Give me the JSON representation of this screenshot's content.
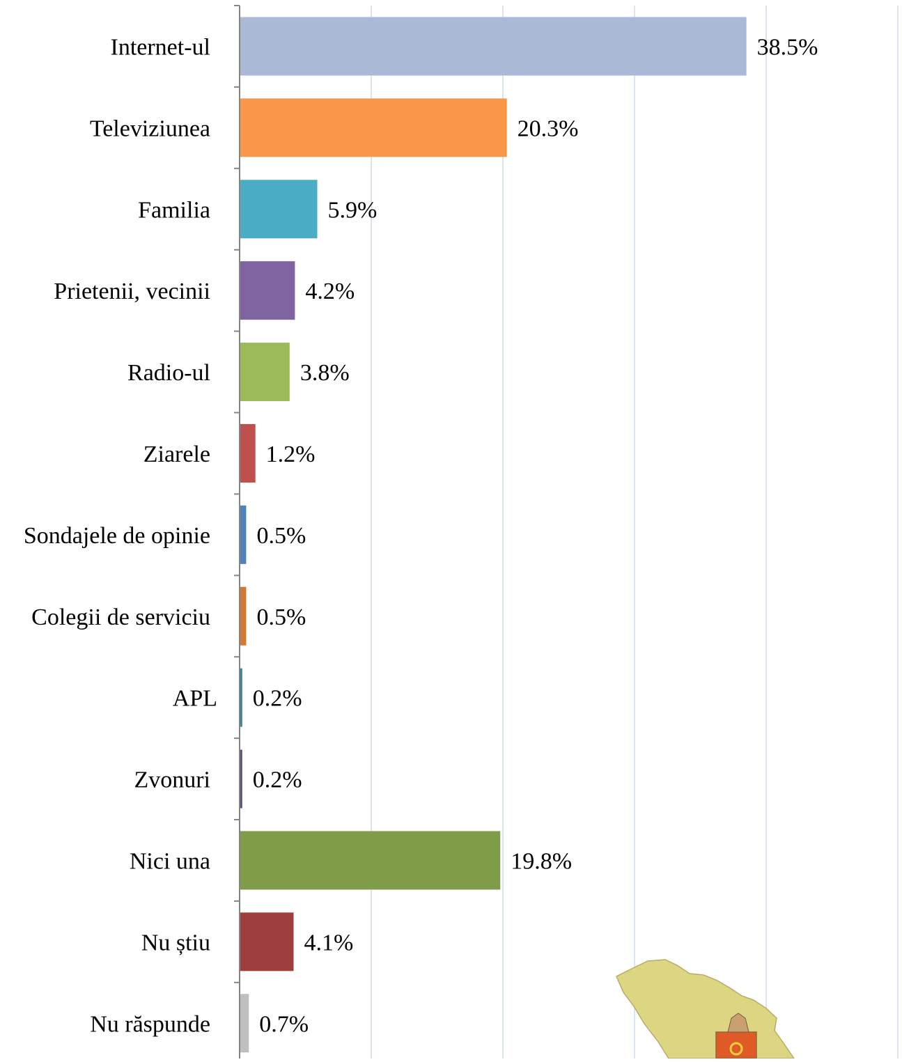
{
  "chart_data": {
    "type": "bar",
    "orientation": "horizontal",
    "categories": [
      "Internet-ul",
      "Televiziunea",
      "Familia",
      "Prietenii, vecinii",
      "Radio-ul",
      "Ziarele",
      "Sondajele de opinie",
      "Colegii de serviciu",
      "APL",
      "Zvonuri",
      "Nici una",
      "Nu știu",
      "Nu răspunde"
    ],
    "values": [
      38.5,
      20.3,
      5.9,
      4.2,
      3.8,
      1.2,
      0.5,
      0.5,
      0.2,
      0.2,
      19.8,
      4.1,
      0.7
    ],
    "data_labels": [
      "38.5%",
      "20.3%",
      "5.9%",
      "4.2%",
      "3.8%",
      "1.2%",
      "0.5%",
      "0.5%",
      "0.2%",
      "0.2%",
      "19.8%",
      "4.1%",
      "0.7%"
    ],
    "colors": [
      "#A9B9D6",
      "#F79747",
      "#4BACC6",
      "#8064A2",
      "#9BBB59",
      "#C0504D",
      "#4F81BD",
      "#D47A30",
      "#31859C",
      "#604A7B",
      "#7F9C48",
      "#9E3F3D",
      "#BFBFBF"
    ],
    "xlim": [
      0,
      50
    ],
    "grid": true,
    "gridline_color": "#D0DCEC",
    "title": "",
    "xlabel": "",
    "ylabel": ""
  },
  "decoration": {
    "map_emblem": "moldova-map-coat-of-arms"
  }
}
